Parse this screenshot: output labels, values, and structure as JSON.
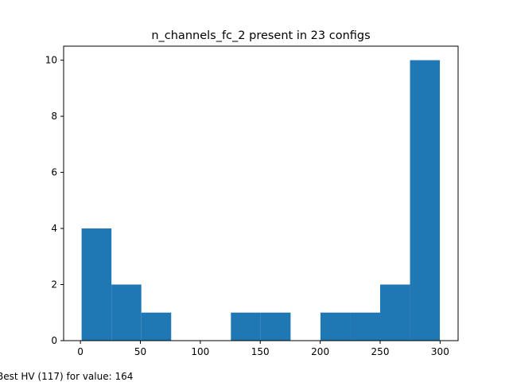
{
  "chart_data": {
    "type": "bar",
    "title": "n_channels_fc_2 present in 23 configs",
    "xlabel": "",
    "ylabel": "",
    "xlim": [
      -14,
      315
    ],
    "ylim": [
      0,
      10.5
    ],
    "x_ticks": [
      0,
      50,
      100,
      150,
      200,
      250,
      300
    ],
    "y_ticks": [
      0,
      2,
      4,
      6,
      8,
      10
    ],
    "bin_edges": [
      1,
      25.9,
      50.8,
      75.7,
      100.6,
      125.5,
      150.4,
      175.3,
      200.2,
      225.1,
      250,
      274.9,
      299.8
    ],
    "counts": [
      4,
      2,
      1,
      0,
      0,
      1,
      1,
      0,
      1,
      1,
      2,
      10
    ],
    "bar_color": "#1f77b4",
    "grid": false,
    "legend": "none"
  },
  "annotation": "Best HV (117) for value: 164"
}
